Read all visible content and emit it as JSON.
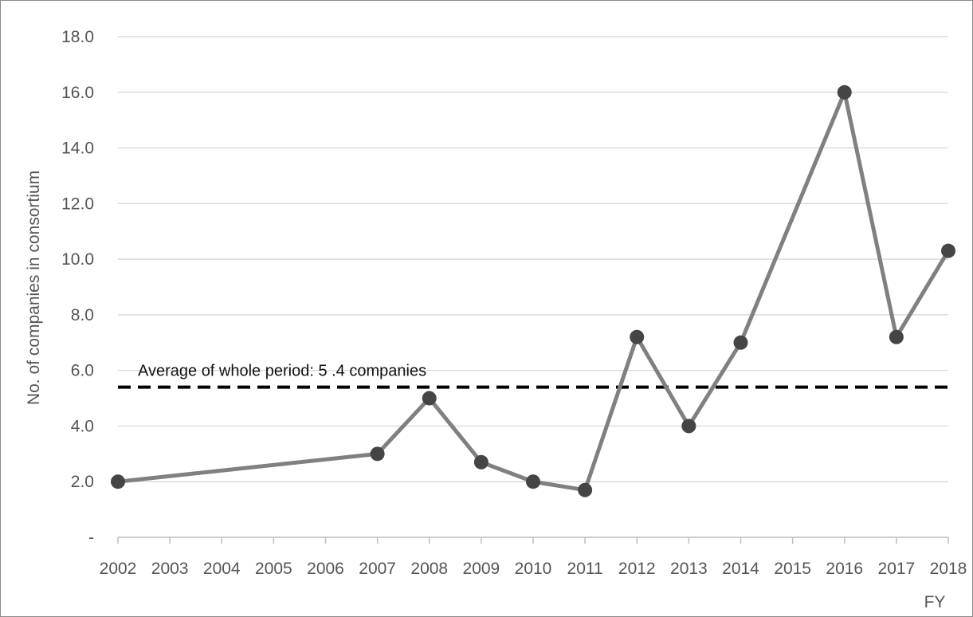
{
  "chart_data": {
    "type": "line",
    "title": "",
    "xlabel": "FY",
    "ylabel": "No. of companies in consortium",
    "categories": [
      "2002",
      "2003",
      "2004",
      "2005",
      "2006",
      "2007",
      "2008",
      "2009",
      "2010",
      "2011",
      "2012",
      "2013",
      "2014",
      "2015",
      "2016",
      "2017",
      "2018"
    ],
    "y_tick_labels": [
      "-",
      "2.0",
      "4.0",
      "6.0",
      "8.0",
      "10.0",
      "12.0",
      "14.0",
      "16.0",
      "18.0"
    ],
    "ylim": [
      0,
      18
    ],
    "grid": true,
    "series": [
      {
        "values": [
          2.0,
          null,
          null,
          null,
          null,
          3.0,
          5.0,
          2.7,
          2.0,
          1.7,
          7.2,
          4.0,
          7.0,
          null,
          16.0,
          7.2,
          10.3
        ],
        "color": "#808080",
        "marker_color": "#454545"
      }
    ],
    "reference_line": {
      "value": 5.4,
      "label": "Average of whole period: 5 .4 companies",
      "style": "dashed",
      "color": "#000000"
    }
  }
}
